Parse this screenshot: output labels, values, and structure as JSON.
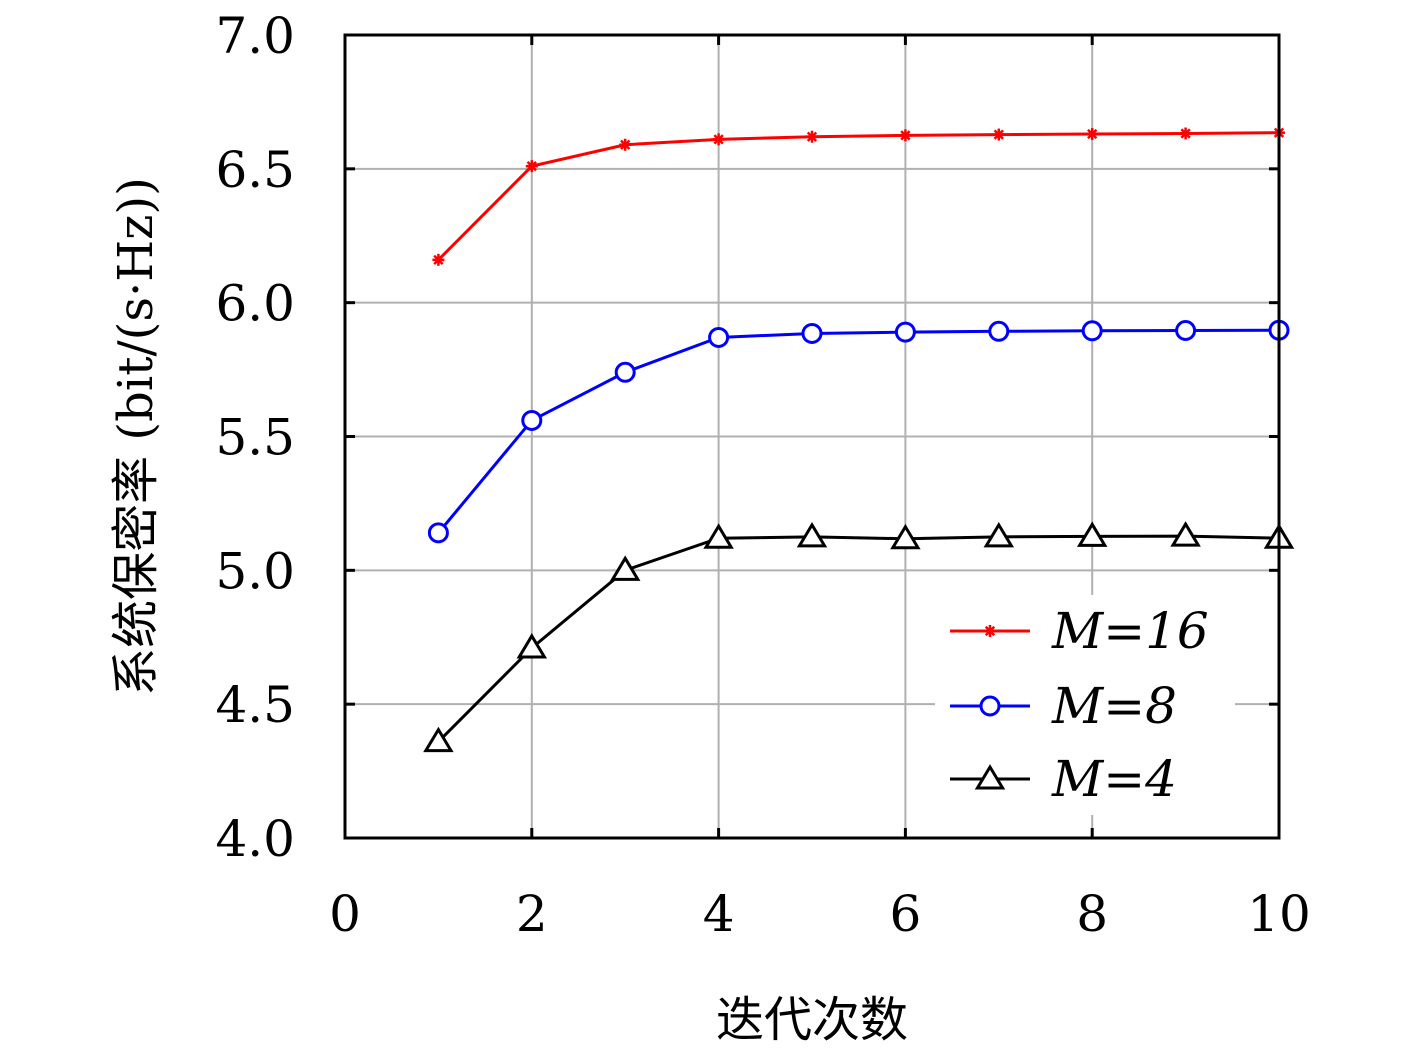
{
  "chart_data": {
    "type": "line",
    "title": "",
    "xlabel": "迭代次数",
    "ylabel": "系统保密率 (bit/(s·Hz))",
    "xlim": [
      0,
      10
    ],
    "ylim": [
      4.0,
      7.0
    ],
    "xticks": [
      "0",
      "2",
      "4",
      "6",
      "8",
      "10"
    ],
    "yticks": [
      "4.0",
      "4.5",
      "5.0",
      "5.5",
      "6.0",
      "6.5",
      "7.0"
    ],
    "grid": true,
    "legend_position": "bottom-right",
    "x": [
      1,
      2,
      3,
      4,
      5,
      6,
      7,
      8,
      9,
      10
    ],
    "series": [
      {
        "name": "M=16",
        "color": "#ff0000",
        "marker": "asterisk",
        "values": [
          6.16,
          6.51,
          6.59,
          6.61,
          6.62,
          6.625,
          6.628,
          6.63,
          6.632,
          6.635
        ]
      },
      {
        "name": "M=8",
        "color": "#0000ff",
        "marker": "circle",
        "values": [
          5.14,
          5.56,
          5.74,
          5.87,
          5.885,
          5.89,
          5.893,
          5.895,
          5.896,
          5.897
        ]
      },
      {
        "name": "M=4",
        "color": "#000000",
        "marker": "triangle",
        "values": [
          4.36,
          4.71,
          5.0,
          5.12,
          5.125,
          5.118,
          5.125,
          5.127,
          5.128,
          5.12
        ]
      }
    ]
  }
}
